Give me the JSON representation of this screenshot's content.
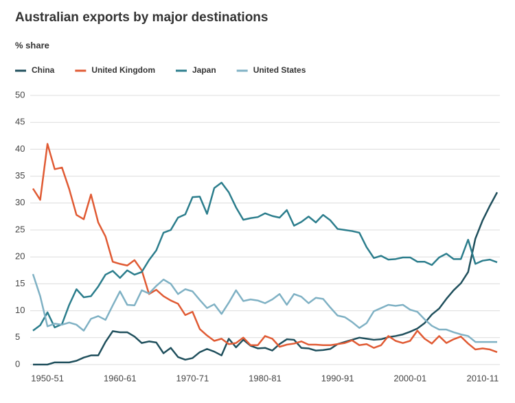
{
  "chart_data": {
    "type": "line",
    "title": "Australian exports by major destinations",
    "subtitle": "% share",
    "categories": [
      null,
      null,
      "1950-51",
      null,
      null,
      null,
      null,
      null,
      null,
      null,
      null,
      null,
      "1960-61",
      null,
      null,
      null,
      null,
      null,
      null,
      null,
      null,
      null,
      "1970-71",
      null,
      null,
      null,
      null,
      null,
      null,
      null,
      null,
      null,
      "1980-81",
      null,
      null,
      null,
      null,
      null,
      null,
      null,
      null,
      null,
      "1990-91",
      null,
      null,
      null,
      null,
      null,
      null,
      null,
      null,
      null,
      "2000-01",
      null,
      null,
      null,
      null,
      null,
      null,
      null,
      null,
      null,
      "2010-11",
      null,
      null
    ],
    "series": [
      {
        "name": "China",
        "color": "#1f4f5c",
        "values": [
          0,
          0,
          0,
          0.4,
          0.4,
          0.4,
          0.7,
          1.3,
          1.7,
          1.7,
          4.2,
          6.2,
          6.0,
          6.0,
          5.2,
          4.0,
          4.3,
          4.1,
          2.1,
          3.1,
          1.4,
          0.9,
          1.2,
          2.3,
          2.9,
          2.4,
          1.7,
          4.8,
          3.2,
          4.6,
          3.5,
          3.0,
          3.1,
          2.6,
          3.8,
          4.7,
          4.6,
          3.1,
          3.0,
          2.6,
          2.7,
          2.9,
          3.8,
          4.2,
          4.6,
          5.0,
          4.8,
          4.6,
          4.7,
          5.1,
          5.3,
          5.6,
          6.1,
          6.7,
          7.7,
          9.3,
          10.4,
          12.2,
          13.8,
          15.1,
          17.2,
          23.4,
          26.8,
          29.5,
          32.0
        ]
      },
      {
        "name": "United Kingdom",
        "color": "#e05a33",
        "values": [
          32.7,
          30.6,
          41.0,
          36.3,
          36.6,
          32.6,
          27.8,
          27.0,
          31.6,
          26.4,
          23.8,
          19.1,
          18.7,
          18.4,
          19.4,
          17.5,
          13.1,
          13.9,
          12.7,
          11.9,
          11.3,
          9.2,
          9.8,
          6.6,
          5.4,
          4.4,
          4.8,
          3.8,
          4.0,
          5.0,
          3.6,
          3.6,
          5.3,
          4.8,
          3.3,
          3.7,
          3.9,
          4.3,
          3.7,
          3.7,
          3.6,
          3.6,
          3.8,
          4.0,
          4.5,
          3.6,
          3.8,
          3.1,
          3.6,
          5.3,
          4.4,
          4.0,
          4.4,
          6.3,
          4.8,
          3.9,
          5.3,
          4.0,
          4.7,
          5.2,
          3.9,
          2.8,
          3.0,
          2.8,
          2.3
        ]
      },
      {
        "name": "Japan",
        "color": "#2b7d8c",
        "values": [
          6.3,
          7.3,
          9.7,
          6.9,
          7.5,
          11.1,
          14.0,
          12.5,
          12.7,
          14.5,
          16.7,
          17.4,
          16.1,
          17.5,
          16.7,
          17.2,
          19.4,
          21.2,
          24.5,
          25.0,
          27.3,
          27.9,
          31.1,
          31.2,
          28.0,
          32.8,
          33.8,
          32.0,
          29.2,
          26.9,
          27.2,
          27.4,
          28.1,
          27.6,
          27.3,
          28.7,
          25.8,
          26.5,
          27.5,
          26.4,
          27.8,
          26.8,
          25.2,
          25.0,
          24.8,
          24.5,
          21.8,
          19.8,
          20.2,
          19.5,
          19.6,
          19.9,
          19.9,
          19.1,
          19.1,
          18.5,
          19.9,
          20.6,
          19.6,
          19.6,
          23.2,
          18.7,
          19.3,
          19.5,
          19.0
        ]
      },
      {
        "name": "United States",
        "color": "#7fb1c4",
        "values": [
          16.8,
          12.7,
          7.1,
          7.6,
          7.4,
          7.8,
          7.4,
          6.3,
          8.5,
          9.0,
          8.3,
          11.0,
          13.6,
          11.1,
          11.0,
          13.8,
          13.2,
          14.6,
          15.8,
          15.0,
          13.1,
          14.0,
          13.6,
          12.0,
          10.5,
          11.2,
          9.4,
          11.5,
          13.8,
          11.8,
          12.1,
          11.9,
          11.4,
          12.1,
          13.1,
          11.1,
          13.1,
          12.6,
          11.4,
          12.4,
          12.2,
          10.6,
          9.1,
          8.8,
          7.9,
          6.8,
          7.7,
          9.9,
          10.5,
          11.1,
          10.9,
          11.1,
          10.2,
          9.8,
          8.4,
          7.2,
          6.5,
          6.5,
          6.0,
          5.6,
          5.3,
          4.2,
          4.2,
          4.2,
          4.2
        ]
      }
    ],
    "ylim": [
      0,
      50
    ],
    "yticks": [
      0,
      5,
      10,
      15,
      20,
      25,
      30,
      35,
      40,
      45,
      50
    ],
    "grid": true
  }
}
